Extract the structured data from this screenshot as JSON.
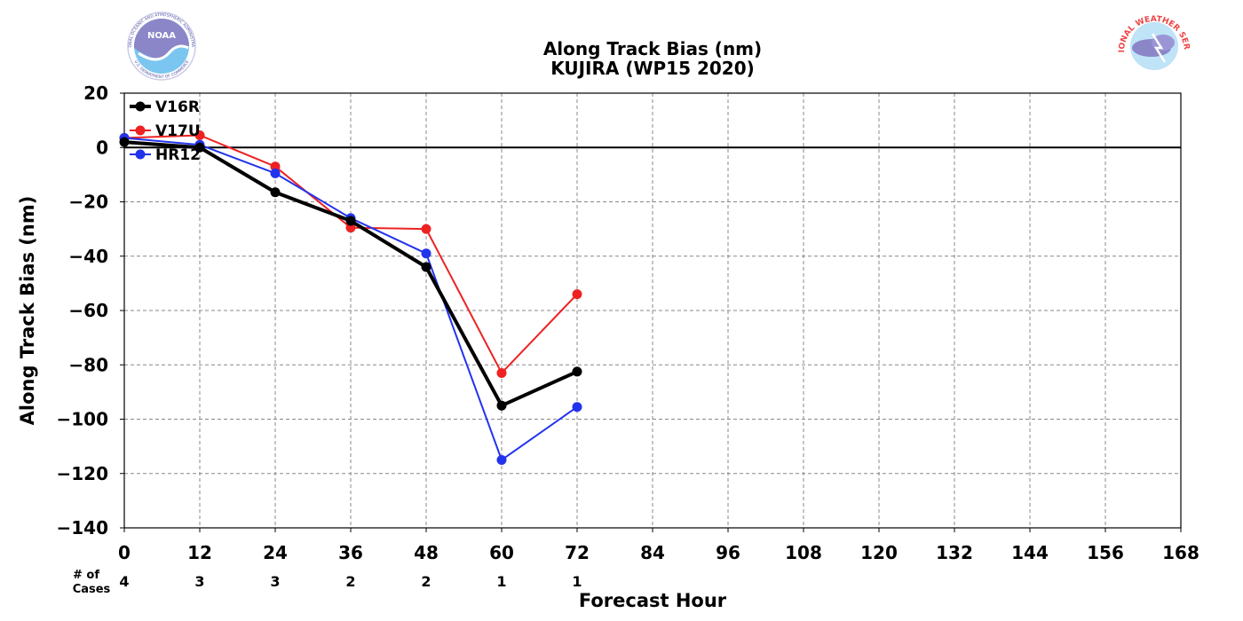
{
  "logos": {
    "left": {
      "text": "NOAA",
      "ring_text": "NATIONAL OCEANIC AND ATMOSPHERIC ADMINISTRATION",
      "ring_text_bottom": "U.S. DEPARTMENT OF COMMERCE"
    },
    "right": {
      "ring_text_top": "NATIONAL WEATHER SERVICE"
    }
  },
  "chart_data": {
    "type": "line",
    "title": "Along Track Bias (nm)",
    "subtitle": "KUJIRA (WP15 2020)",
    "xlabel": "Forecast Hour",
    "ylabel": "Along Track Bias (nm)",
    "xlim": [
      0,
      168
    ],
    "ylim": [
      -140,
      20
    ],
    "xticks": [
      0,
      12,
      24,
      36,
      48,
      60,
      72,
      84,
      96,
      108,
      120,
      132,
      144,
      156,
      168
    ],
    "yticks": [
      20,
      0,
      -20,
      -40,
      -60,
      -80,
      -100,
      -120,
      -140
    ],
    "ytick_labels": [
      "20",
      "0",
      "−20",
      "−40",
      "−60",
      "−80",
      "−100",
      "−120",
      "−140"
    ],
    "grid": true,
    "legend_position": "top-left",
    "cases_label_line1": "# of",
    "cases_label_line2": "Cases",
    "cases": [
      {
        "x": 0,
        "n": "4"
      },
      {
        "x": 12,
        "n": "3"
      },
      {
        "x": 24,
        "n": "3"
      },
      {
        "x": 36,
        "n": "2"
      },
      {
        "x": 48,
        "n": "2"
      },
      {
        "x": 60,
        "n": "1"
      },
      {
        "x": 72,
        "n": "1"
      }
    ],
    "series": [
      {
        "name": "V16R",
        "color": "#000000",
        "x": [
          0,
          12,
          24,
          36,
          48,
          60,
          72
        ],
        "values": [
          2,
          0,
          -16.5,
          -27,
          -44,
          -95,
          -82.5
        ]
      },
      {
        "name": "V17U",
        "color": "#ee2222",
        "x": [
          0,
          12,
          24,
          36,
          48,
          60,
          72
        ],
        "values": [
          3.5,
          4.5,
          -7,
          -29.5,
          -30,
          -83,
          -54
        ]
      },
      {
        "name": "HR12",
        "color": "#2233ee",
        "x": [
          0,
          12,
          24,
          36,
          48,
          60,
          72
        ],
        "values": [
          3.5,
          1,
          -9.5,
          -26,
          -39,
          -115,
          -95.5
        ]
      }
    ]
  }
}
